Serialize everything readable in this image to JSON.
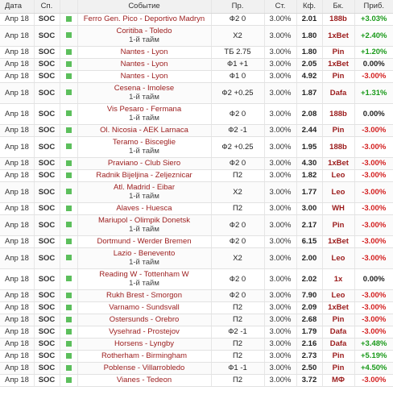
{
  "headers": {
    "date": "Дата",
    "sport": "Сп.",
    "event": "Событие",
    "bet": "Пр.",
    "stake": "Ст.",
    "odds": "Кф.",
    "book": "Бк.",
    "profit": "Приб."
  },
  "rows": [
    {
      "date": "Апр 18",
      "sport": "SOC",
      "event": "Ferro Gen. Pico - Deportivo Madryn",
      "sub": "",
      "bet": "Ф2 0",
      "stake": "3.00%",
      "odds": "2.01",
      "book": "188b",
      "profit": "+3.03%",
      "sign": "pos"
    },
    {
      "date": "Апр 18",
      "sport": "SOC",
      "event": "Coritiba - Toledo",
      "sub": "1-й тайм",
      "bet": "Х2",
      "stake": "3.00%",
      "odds": "1.80",
      "book": "1xBet",
      "profit": "+2.40%",
      "sign": "pos"
    },
    {
      "date": "Апр 18",
      "sport": "SOC",
      "event": "Nantes - Lyon",
      "sub": "",
      "bet": "ТБ 2.75",
      "stake": "3.00%",
      "odds": "1.80",
      "book": "Pin",
      "profit": "+1.20%",
      "sign": "pos"
    },
    {
      "date": "Апр 18",
      "sport": "SOC",
      "event": "Nantes - Lyon",
      "sub": "",
      "bet": "Ф1 +1",
      "stake": "3.00%",
      "odds": "2.05",
      "book": "1xBet",
      "profit": "0.00%",
      "sign": "neu"
    },
    {
      "date": "Апр 18",
      "sport": "SOC",
      "event": "Nantes - Lyon",
      "sub": "",
      "bet": "Ф1 0",
      "stake": "3.00%",
      "odds": "4.92",
      "book": "Pin",
      "profit": "-3.00%",
      "sign": "neg"
    },
    {
      "date": "Апр 18",
      "sport": "SOC",
      "event": "Cesena - Imolese",
      "sub": "1-й тайм",
      "bet": "Ф2 +0.25",
      "stake": "3.00%",
      "odds": "1.87",
      "book": "Dafa",
      "profit": "+1.31%",
      "sign": "pos"
    },
    {
      "date": "Апр 18",
      "sport": "SOC",
      "event": "Vis Pesaro - Fermana",
      "sub": "1-й тайм",
      "bet": "Ф2 0",
      "stake": "3.00%",
      "odds": "2.08",
      "book": "188b",
      "profit": "0.00%",
      "sign": "neu"
    },
    {
      "date": "Апр 18",
      "sport": "SOC",
      "event": "Ol. Nicosia - AEK Larnaca",
      "sub": "",
      "bet": "Ф2 -1",
      "stake": "3.00%",
      "odds": "2.44",
      "book": "Pin",
      "profit": "-3.00%",
      "sign": "neg"
    },
    {
      "date": "Апр 18",
      "sport": "SOC",
      "event": "Teramo - Bisceglie",
      "sub": "1-й тайм",
      "bet": "Ф2 +0.25",
      "stake": "3.00%",
      "odds": "1.95",
      "book": "188b",
      "profit": "-3.00%",
      "sign": "neg"
    },
    {
      "date": "Апр 18",
      "sport": "SOC",
      "event": "Praviano - Club Siero",
      "sub": "",
      "bet": "Ф2 0",
      "stake": "3.00%",
      "odds": "4.30",
      "book": "1xBet",
      "profit": "-3.00%",
      "sign": "neg"
    },
    {
      "date": "Апр 18",
      "sport": "SOC",
      "event": "Radnik Bijeljina - Zeljeznicar",
      "sub": "",
      "bet": "П2",
      "stake": "3.00%",
      "odds": "1.82",
      "book": "Leo",
      "profit": "-3.00%",
      "sign": "neg"
    },
    {
      "date": "Апр 18",
      "sport": "SOC",
      "event": "Atl. Madrid - Eibar",
      "sub": "1-й тайм",
      "bet": "Х2",
      "stake": "3.00%",
      "odds": "1.77",
      "book": "Leo",
      "profit": "-3.00%",
      "sign": "neg"
    },
    {
      "date": "Апр 18",
      "sport": "SOC",
      "event": "Alaves - Huesca",
      "sub": "",
      "bet": "П2",
      "stake": "3.00%",
      "odds": "3.00",
      "book": "WH",
      "profit": "-3.00%",
      "sign": "neg"
    },
    {
      "date": "Апр 18",
      "sport": "SOC",
      "event": "Mariupol - Olimpik Donetsk",
      "sub": "1-й тайм",
      "bet": "Ф2 0",
      "stake": "3.00%",
      "odds": "2.17",
      "book": "Pin",
      "profit": "-3.00%",
      "sign": "neg"
    },
    {
      "date": "Апр 18",
      "sport": "SOC",
      "event": "Dortmund - Werder Bremen",
      "sub": "",
      "bet": "Ф2 0",
      "stake": "3.00%",
      "odds": "6.15",
      "book": "1xBet",
      "profit": "-3.00%",
      "sign": "neg"
    },
    {
      "date": "Апр 18",
      "sport": "SOC",
      "event": "Lazio - Benevento",
      "sub": "1-й тайм",
      "bet": "Х2",
      "stake": "3.00%",
      "odds": "2.00",
      "book": "Leo",
      "profit": "-3.00%",
      "sign": "neg"
    },
    {
      "date": "Апр 18",
      "sport": "SOC",
      "event": "Reading W - Tottenham W",
      "sub": "1-й тайм",
      "bet": "Ф2 0",
      "stake": "3.00%",
      "odds": "2.02",
      "book": "1x",
      "profit": "0.00%",
      "sign": "neu"
    },
    {
      "date": "Апр 18",
      "sport": "SOC",
      "event": "Rukh Brest - Smorgon",
      "sub": "",
      "bet": "Ф2 0",
      "stake": "3.00%",
      "odds": "7.90",
      "book": "Leo",
      "profit": "-3.00%",
      "sign": "neg"
    },
    {
      "date": "Апр 18",
      "sport": "SOC",
      "event": "Varnamo - Sundsvall",
      "sub": "",
      "bet": "П2",
      "stake": "3.00%",
      "odds": "2.09",
      "book": "1xBet",
      "profit": "-3.00%",
      "sign": "neg"
    },
    {
      "date": "Апр 18",
      "sport": "SOC",
      "event": "Ostersunds - Orebro",
      "sub": "",
      "bet": "П2",
      "stake": "3.00%",
      "odds": "2.68",
      "book": "Pin",
      "profit": "-3.00%",
      "sign": "neg"
    },
    {
      "date": "Апр 18",
      "sport": "SOC",
      "event": "Vysehrad - Prostejov",
      "sub": "",
      "bet": "Ф2 -1",
      "stake": "3.00%",
      "odds": "1.79",
      "book": "Dafa",
      "profit": "-3.00%",
      "sign": "neg"
    },
    {
      "date": "Апр 18",
      "sport": "SOC",
      "event": "Horsens - Lyngby",
      "sub": "",
      "bet": "П2",
      "stake": "3.00%",
      "odds": "2.16",
      "book": "Dafa",
      "profit": "+3.48%",
      "sign": "pos"
    },
    {
      "date": "Апр 18",
      "sport": "SOC",
      "event": "Rotherham - Birmingham",
      "sub": "",
      "bet": "П2",
      "stake": "3.00%",
      "odds": "2.73",
      "book": "Pin",
      "profit": "+5.19%",
      "sign": "pos"
    },
    {
      "date": "Апр 18",
      "sport": "SOC",
      "event": "Poblense - Villarrobledo",
      "sub": "",
      "bet": "Ф1 -1",
      "stake": "3.00%",
      "odds": "2.50",
      "book": "Pin",
      "profit": "+4.50%",
      "sign": "pos"
    },
    {
      "date": "Апр 18",
      "sport": "SOC",
      "event": "Vianes - Tedeon",
      "sub": "",
      "bet": "П2",
      "stake": "3.00%",
      "odds": "3.72",
      "book": "МФ",
      "profit": "-3.00%",
      "sign": "neg"
    }
  ]
}
